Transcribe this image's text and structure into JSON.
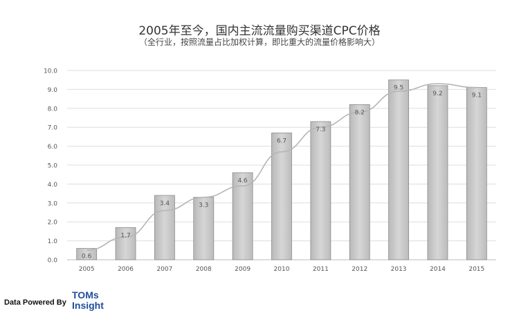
{
  "chart_data": {
    "type": "bar",
    "title": "2005年至今，国内主流流量购买渠道CPC价格",
    "subtitle": "（全行业，按照流量占比加权计算，即比重大的流量价格影响大）",
    "categories": [
      "2005",
      "2006",
      "2007",
      "2008",
      "2009",
      "2010",
      "2011",
      "2012",
      "2013",
      "2014",
      "2015"
    ],
    "values": [
      0.6,
      1.7,
      3.4,
      3.3,
      4.6,
      6.7,
      7.3,
      8.2,
      9.5,
      9.2,
      9.1
    ],
    "data_labels": [
      "0.6",
      "1.7",
      "3.4",
      "3.3",
      "4.6",
      "6.7",
      "7.3",
      "8.2",
      "9.5",
      "9.2",
      "9.1"
    ],
    "trend_line": [
      0.5,
      1.2,
      2.6,
      3.3,
      3.9,
      5.7,
      7.0,
      7.8,
      8.9,
      9.3,
      9.1
    ],
    "ylim": [
      0,
      10
    ],
    "yticks": [
      "0.0",
      "1.0",
      "2.0",
      "3.0",
      "4.0",
      "5.0",
      "6.0",
      "7.0",
      "8.0",
      "9.0",
      "10.0"
    ],
    "grid": true,
    "legend": "none",
    "colors": {
      "bar": "#c6c6c6",
      "bar_edge": "#8a8a8a",
      "trend": "#b5b5b5",
      "grid": "#dddddd"
    }
  },
  "footer": {
    "powered_by": "Data Powered By",
    "logo_line1": "TOMs",
    "logo_line2": "Insight"
  }
}
